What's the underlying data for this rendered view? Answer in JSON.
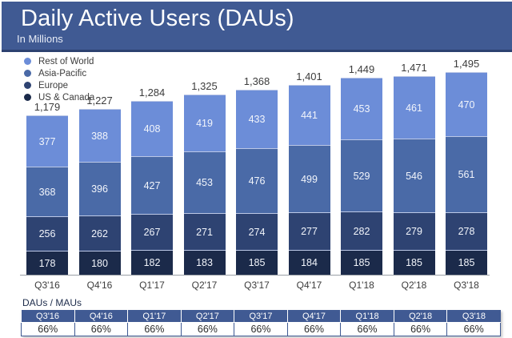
{
  "header": {
    "title": "Daily Active Users (DAUs)",
    "subtitle": "In Millions"
  },
  "chart_data": {
    "type": "bar",
    "stacked": true,
    "title": "Daily Active Users (DAUs)",
    "subtitle": "In Millions",
    "unit": "millions",
    "legend_position": "top-left",
    "categories": [
      "Q3'16",
      "Q4'16",
      "Q1'17",
      "Q2'17",
      "Q3'17",
      "Q4'17",
      "Q1'18",
      "Q2'18",
      "Q3'18"
    ],
    "series": [
      {
        "name": "US & Canada",
        "color": "#1b2a4a",
        "values": [
          178,
          180,
          182,
          183,
          185,
          184,
          185,
          185,
          185
        ]
      },
      {
        "name": "Europe",
        "color": "#2e4372",
        "values": [
          256,
          262,
          267,
          271,
          274,
          277,
          282,
          279,
          278
        ]
      },
      {
        "name": "Asia-Pacific",
        "color": "#4a6aa7",
        "values": [
          368,
          396,
          427,
          453,
          476,
          499,
          529,
          546,
          561
        ]
      },
      {
        "name": "Rest of World",
        "color": "#6c8dd8",
        "values": [
          377,
          388,
          408,
          419,
          433,
          441,
          453,
          461,
          470
        ]
      }
    ],
    "totals": [
      1179,
      1227,
      1284,
      1325,
      1368,
      1401,
      1449,
      1471,
      1495
    ],
    "legend_order_top_to_bottom": [
      "Rest of World",
      "Asia-Pacific",
      "Europe",
      "US & Canada"
    ]
  },
  "ratio_table": {
    "label": "DAUs / MAUs",
    "columns": [
      "Q3'16",
      "Q4'16",
      "Q1'17",
      "Q2'17",
      "Q3'17",
      "Q4'17",
      "Q1'18",
      "Q2'18",
      "Q3'18"
    ],
    "values": [
      "66%",
      "66%",
      "66%",
      "66%",
      "66%",
      "66%",
      "66%",
      "66%",
      "66%"
    ]
  },
  "colors": {
    "header_bg": "#405a93",
    "header_border": "#2c4170",
    "axis": "#9aa0a6",
    "segment_divider": "#bcc8e6",
    "value_text": "#f2f5fb",
    "label_text": "#3c3c3c",
    "table_border": "#3f5a93"
  }
}
